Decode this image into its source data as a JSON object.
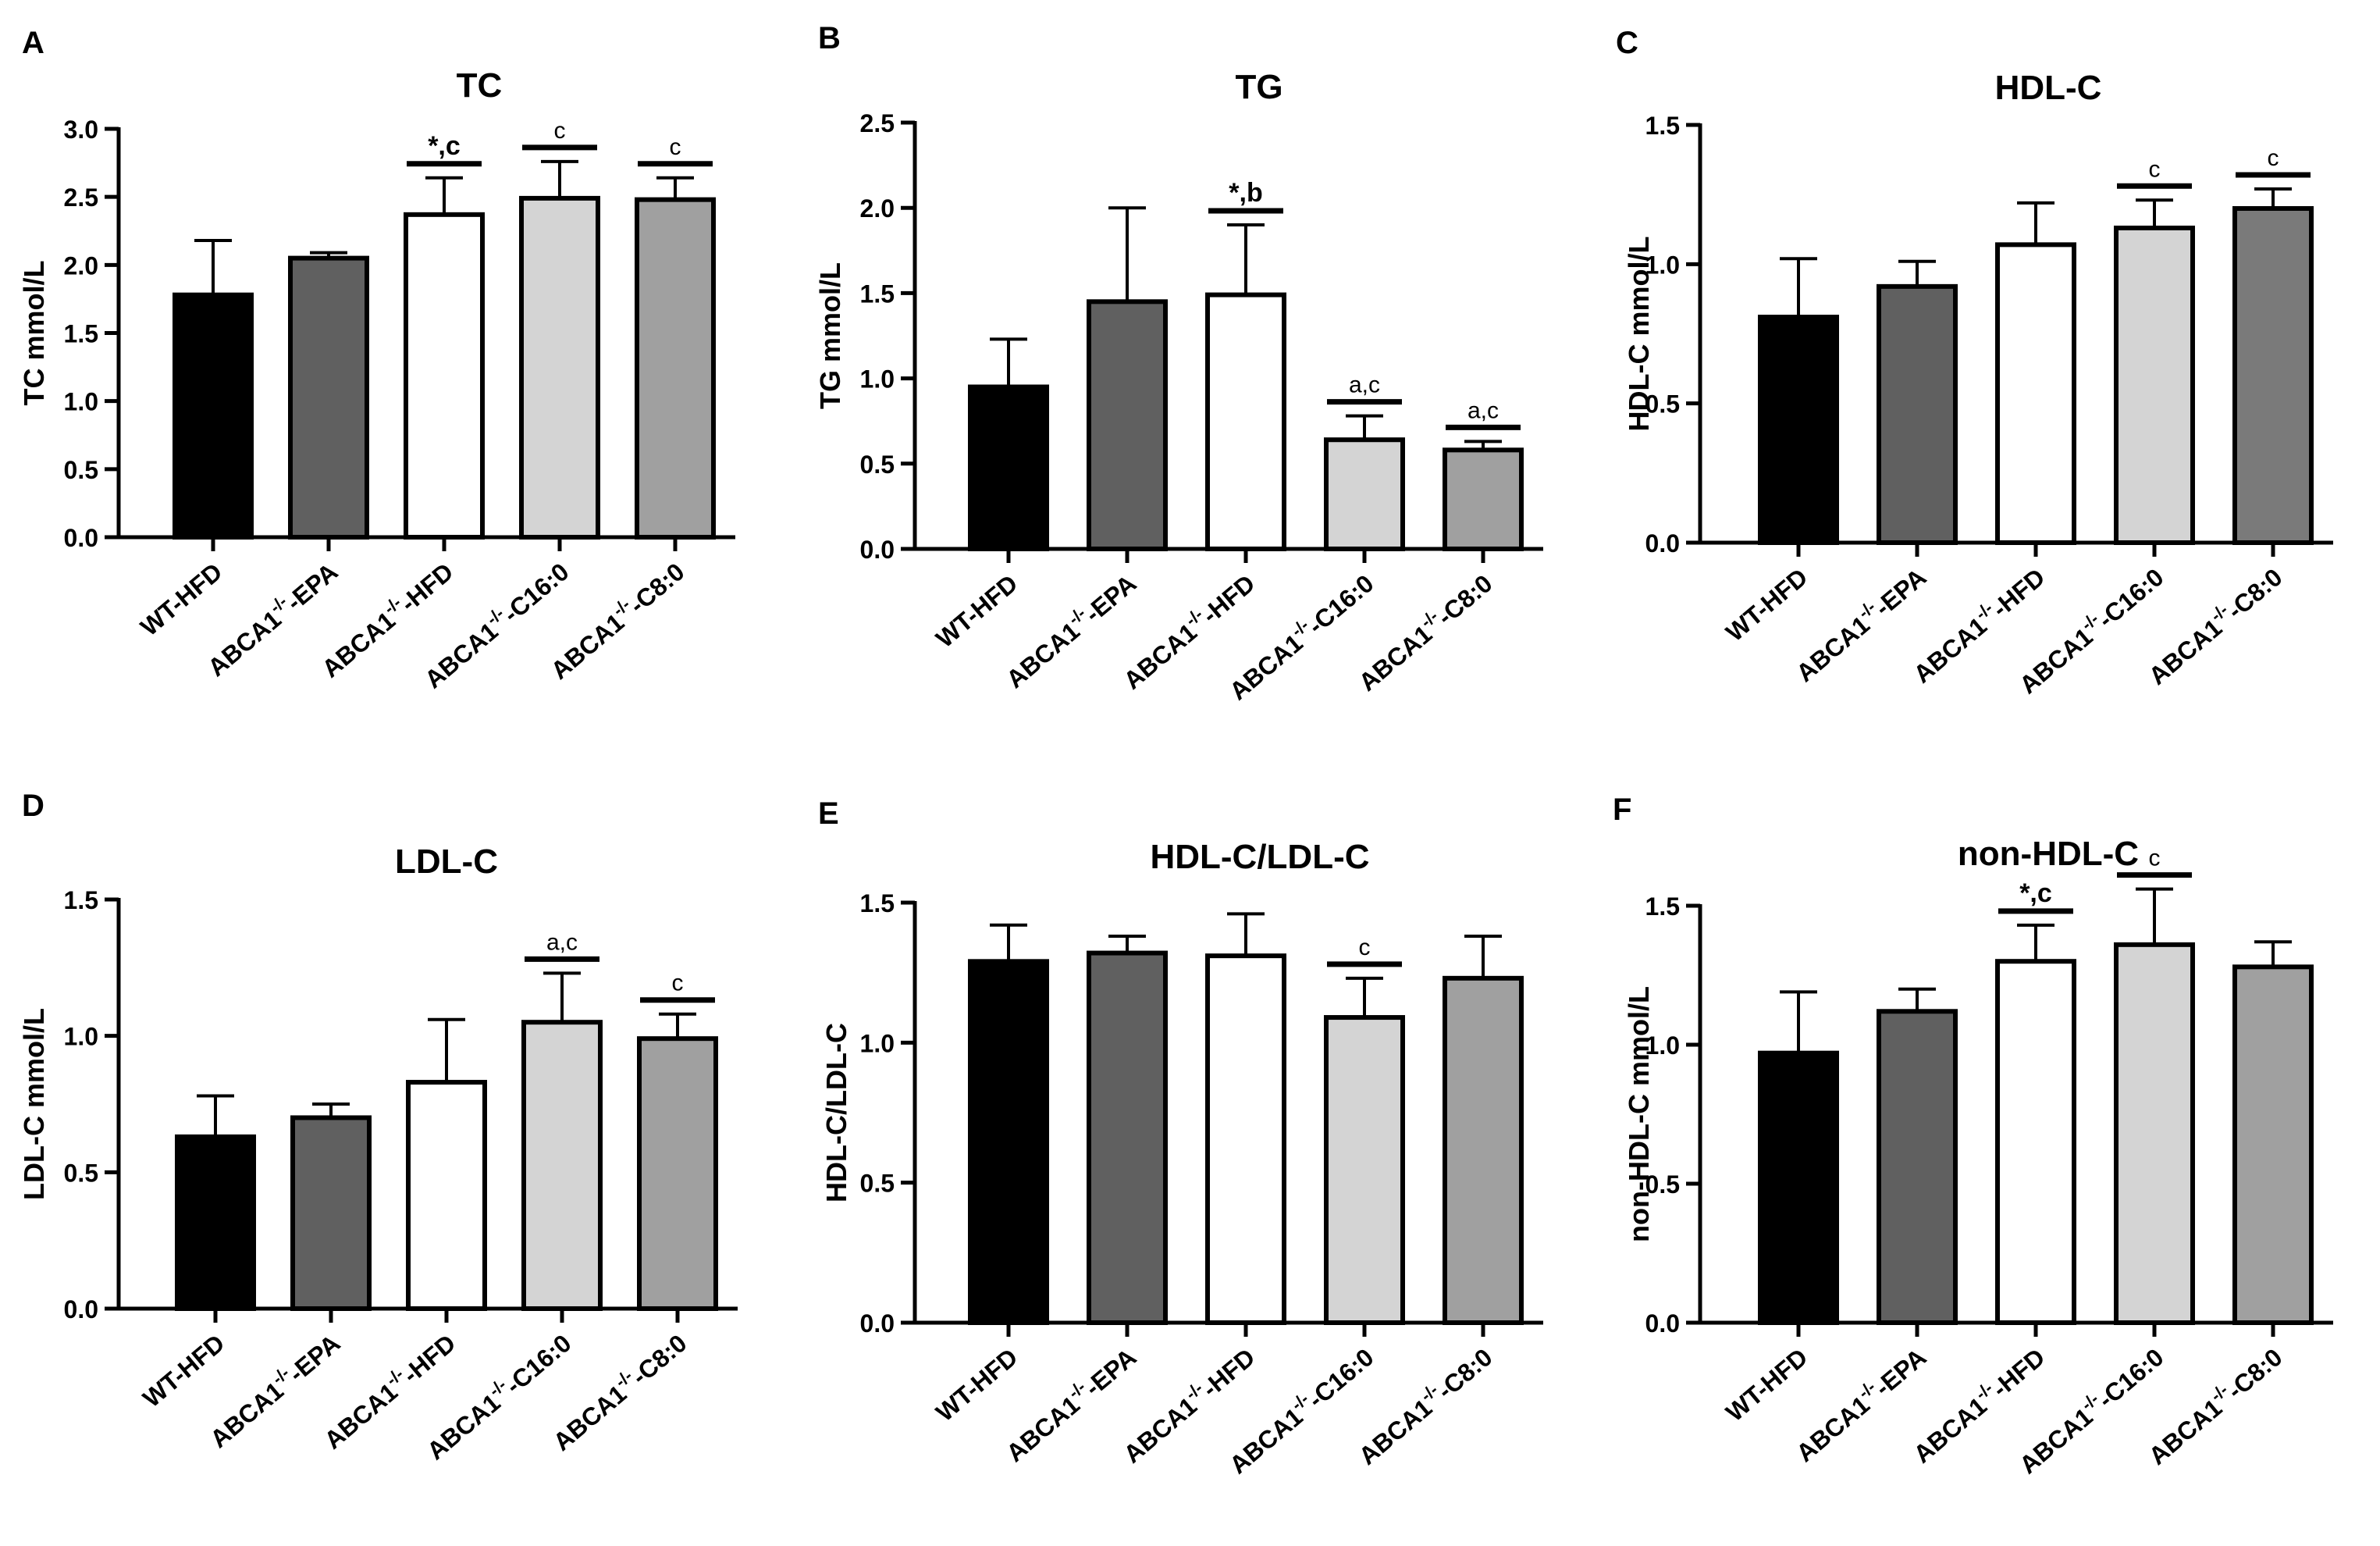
{
  "figure": {
    "panels": [
      {
        "letter": "A",
        "chart_data": {
          "type": "bar",
          "title": "TC",
          "ylabel": "TC mmol/L",
          "xlabel": "",
          "ylim": [
            0,
            3.0
          ],
          "yticks": [
            "0.0",
            "0.5",
            "1.0",
            "1.5",
            "2.0",
            "2.5",
            "3.0"
          ],
          "categories": [
            {
              "base": "WT-HFD",
              "sup": ""
            },
            {
              "base": "ABCA1",
              "sup": "-/-",
              "suffix": "-EPA"
            },
            {
              "base": "ABCA1",
              "sup": "-/-",
              "suffix": "-HFD"
            },
            {
              "base": "ABCA1",
              "sup": "-/-",
              "suffix": "-C16:0"
            },
            {
              "base": "ABCA1",
              "sup": "-/-",
              "suffix": "-C8:0"
            }
          ],
          "values": [
            1.78,
            2.05,
            2.37,
            2.49,
            2.48
          ],
          "errors": [
            0.4,
            0.04,
            0.27,
            0.27,
            0.16
          ],
          "annotations": [
            "",
            "",
            "*,c",
            "c",
            "c"
          ],
          "bar_colors": [
            "#000000",
            "#606060",
            "#ffffff",
            "#d4d4d4",
            "#a0a0a0"
          ]
        }
      },
      {
        "letter": "B",
        "chart_data": {
          "type": "bar",
          "title": "TG",
          "ylabel": "TG mmol/L",
          "xlabel": "",
          "ylim": [
            0,
            2.5
          ],
          "yticks": [
            "0.0",
            "0.5",
            "1.0",
            "1.5",
            "2.0",
            "2.5"
          ],
          "categories": [
            {
              "base": "WT-HFD",
              "sup": ""
            },
            {
              "base": "ABCA1",
              "sup": "-/-",
              "suffix": "-EPA"
            },
            {
              "base": "ABCA1",
              "sup": "-/-",
              "suffix": "-HFD"
            },
            {
              "base": "ABCA1",
              "sup": "-/-",
              "suffix": "-C16:0"
            },
            {
              "base": "ABCA1",
              "sup": "-/-",
              "suffix": "-C8:0"
            }
          ],
          "values": [
            0.95,
            1.45,
            1.49,
            0.64,
            0.58
          ],
          "errors": [
            0.28,
            0.55,
            0.41,
            0.14,
            0.05
          ],
          "annotations": [
            "",
            "",
            "*,b",
            "a,c",
            "a,c"
          ],
          "bar_colors": [
            "#000000",
            "#606060",
            "#ffffff",
            "#d4d4d4",
            "#a0a0a0"
          ]
        }
      },
      {
        "letter": "C",
        "chart_data": {
          "type": "bar",
          "title": "HDL-C",
          "ylabel": "HDL-C mmol/L",
          "xlabel": "",
          "ylim": [
            0,
            1.5
          ],
          "yticks": [
            "0.0",
            "0.5",
            "1.0",
            "1.5"
          ],
          "categories": [
            {
              "base": "WT-HFD",
              "sup": ""
            },
            {
              "base": "ABCA1",
              "sup": "-/-",
              "suffix": "-EPA"
            },
            {
              "base": "ABCA1",
              "sup": "-/-",
              "suffix": "-HFD"
            },
            {
              "base": "ABCA1",
              "sup": "-/-",
              "suffix": "-C16:0"
            },
            {
              "base": "ABCA1",
              "sup": "-/-",
              "suffix": "-C8:0"
            }
          ],
          "values": [
            0.81,
            0.92,
            1.07,
            1.13,
            1.2
          ],
          "errors": [
            0.21,
            0.09,
            0.15,
            0.1,
            0.07
          ],
          "annotations": [
            "",
            "",
            "",
            "c",
            "c"
          ],
          "bar_colors": [
            "#000000",
            "#606060",
            "#ffffff",
            "#d4d4d4",
            "#7a7a7a"
          ]
        }
      },
      {
        "letter": "D",
        "chart_data": {
          "type": "bar",
          "title": "LDL-C",
          "ylabel": "LDL-C mmol/L",
          "xlabel": "",
          "ylim": [
            0,
            1.5
          ],
          "yticks": [
            "0.0",
            "0.5",
            "1.0",
            "1.5"
          ],
          "categories": [
            {
              "base": "WT-HFD",
              "sup": ""
            },
            {
              "base": "ABCA1",
              "sup": "-/-",
              "suffix": "-EPA"
            },
            {
              "base": "ABCA1",
              "sup": "-/-",
              "suffix": "-HFD"
            },
            {
              "base": "ABCA1",
              "sup": "-/-",
              "suffix": "-C16:0"
            },
            {
              "base": "ABCA1",
              "sup": "-/-",
              "suffix": "-C8:0"
            }
          ],
          "values": [
            0.63,
            0.7,
            0.83,
            1.05,
            0.99
          ],
          "errors": [
            0.15,
            0.05,
            0.23,
            0.18,
            0.09
          ],
          "annotations": [
            "",
            "",
            "",
            "a,c",
            "c"
          ],
          "bar_colors": [
            "#000000",
            "#606060",
            "#ffffff",
            "#d4d4d4",
            "#a0a0a0"
          ]
        }
      },
      {
        "letter": "E",
        "chart_data": {
          "type": "bar",
          "title": "HDL-C/LDL-C",
          "ylabel": "HDL-C/LDL-C",
          "xlabel": "",
          "ylim": [
            0,
            1.5
          ],
          "yticks": [
            "0.0",
            "0.5",
            "1.0",
            "1.5"
          ],
          "categories": [
            {
              "base": "WT-HFD",
              "sup": ""
            },
            {
              "base": "ABCA1",
              "sup": "-/-",
              "suffix": "-EPA"
            },
            {
              "base": "ABCA1",
              "sup": "-/-",
              "suffix": "-HFD"
            },
            {
              "base": "ABCA1",
              "sup": "-/-",
              "suffix": "-C16:0"
            },
            {
              "base": "ABCA1",
              "sup": "-/-",
              "suffix": "-C8:0"
            }
          ],
          "values": [
            1.29,
            1.32,
            1.31,
            1.09,
            1.23
          ],
          "errors": [
            0.13,
            0.06,
            0.15,
            0.14,
            0.15
          ],
          "annotations": [
            "",
            "",
            "",
            "c",
            ""
          ],
          "bar_colors": [
            "#000000",
            "#606060",
            "#ffffff",
            "#d4d4d4",
            "#a0a0a0"
          ]
        }
      },
      {
        "letter": "F",
        "chart_data": {
          "type": "bar",
          "title": "non-HDL-C",
          "ylabel": "non-HDL-C mmol/L",
          "xlabel": "",
          "ylim": [
            0,
            1.6
          ],
          "yticks": [
            "0.0",
            "0.5",
            "1.0",
            "1.5"
          ],
          "categories": [
            {
              "base": "WT-HFD",
              "sup": ""
            },
            {
              "base": "ABCA1",
              "sup": "-/-",
              "suffix": "-EPA"
            },
            {
              "base": "ABCA1",
              "sup": "-/-",
              "suffix": "-HFD"
            },
            {
              "base": "ABCA1",
              "sup": "-/-",
              "suffix": "-C16:0"
            },
            {
              "base": "ABCA1",
              "sup": "-/-",
              "suffix": "-C8:0"
            }
          ],
          "values": [
            0.97,
            1.12,
            1.3,
            1.36,
            1.28
          ],
          "errors": [
            0.22,
            0.08,
            0.13,
            0.2,
            0.09
          ],
          "annotations": [
            "",
            "",
            "*,c",
            "c",
            ""
          ],
          "bar_colors": [
            "#000000",
            "#606060",
            "#ffffff",
            "#d4d4d4",
            "#a0a0a0"
          ]
        }
      }
    ]
  }
}
